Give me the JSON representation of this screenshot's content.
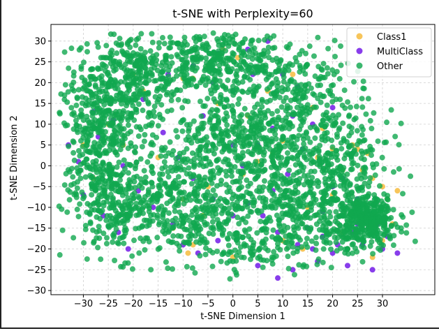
{
  "chart_data": {
    "type": "scatter",
    "title": "t-SNE with Perplexity=60",
    "xlabel": "t-SNE Dimension 1",
    "ylabel": "t-SNE Dimension 2",
    "xlim": [
      -36.5,
      40.5
    ],
    "ylim": [
      -31,
      34
    ],
    "xticks": [
      -30,
      -25,
      -20,
      -15,
      -10,
      -5,
      0,
      5,
      10,
      15,
      20,
      25,
      30
    ],
    "yticks": [
      -30,
      -25,
      -20,
      -15,
      -10,
      -5,
      0,
      5,
      10,
      15,
      20,
      25,
      30
    ],
    "grid": true,
    "legend_position": "top-right",
    "series": [
      {
        "name": "Class1",
        "color": "#f5b731",
        "points": [
          [
            -10,
            21
          ],
          [
            -8,
            21
          ],
          [
            -5,
            24
          ],
          [
            -2,
            28
          ],
          [
            1,
            26
          ],
          [
            -18,
            18
          ],
          [
            -20,
            22
          ],
          [
            -25,
            10
          ],
          [
            -22,
            5
          ],
          [
            -15,
            2
          ],
          [
            -8,
            -19
          ],
          [
            -9,
            -21
          ],
          [
            -10,
            -8
          ],
          [
            -5,
            -5
          ],
          [
            2,
            -2
          ],
          [
            5,
            1
          ],
          [
            8,
            3
          ],
          [
            10,
            6
          ],
          [
            3,
            12
          ],
          [
            -3,
            15
          ],
          [
            7,
            18
          ],
          [
            12,
            22
          ],
          [
            16,
            14
          ],
          [
            18,
            9
          ],
          [
            24,
            5
          ],
          [
            25,
            4
          ],
          [
            27,
            3
          ],
          [
            26,
            -1
          ],
          [
            28,
            -3
          ],
          [
            30,
            -5
          ],
          [
            31,
            -8
          ],
          [
            33,
            -6
          ],
          [
            30,
            -18
          ],
          [
            32,
            -14
          ],
          [
            28,
            -22
          ],
          [
            22,
            -16
          ],
          [
            23,
            -20
          ],
          [
            26,
            -12
          ],
          [
            20,
            -7
          ],
          [
            15,
            -10
          ],
          [
            17,
            2
          ],
          [
            20,
            4
          ],
          [
            22,
            -1
          ],
          [
            -28,
            -3
          ],
          [
            -30,
            5
          ],
          [
            -12,
            -15
          ],
          [
            -6,
            -12
          ],
          [
            0,
            -22
          ],
          [
            10,
            -18
          ],
          [
            14,
            -20
          ]
        ]
      },
      {
        "name": "MultiClass",
        "color": "#6a0de6",
        "points": [
          [
            -13,
            22
          ],
          [
            -8,
            24
          ],
          [
            -3,
            27
          ],
          [
            3,
            28
          ],
          [
            7,
            30
          ],
          [
            10,
            22
          ],
          [
            13,
            19
          ],
          [
            -18,
            16
          ],
          [
            -24,
            11
          ],
          [
            -27,
            7
          ],
          [
            -31,
            1
          ],
          [
            -30,
            -7
          ],
          [
            -26,
            -12
          ],
          [
            -23,
            -16
          ],
          [
            -21,
            -20
          ],
          [
            -12,
            -14
          ],
          [
            -10,
            -19
          ],
          [
            -7,
            -21
          ],
          [
            -3,
            -18
          ],
          [
            0,
            -12
          ],
          [
            3,
            -9
          ],
          [
            6,
            -12
          ],
          [
            9,
            -16
          ],
          [
            13,
            -19
          ],
          [
            15,
            -15
          ],
          [
            18,
            -11
          ],
          [
            20,
            -5
          ],
          [
            22,
            -3
          ],
          [
            25,
            -8
          ],
          [
            27,
            -11
          ],
          [
            29,
            -14
          ],
          [
            31,
            -17
          ],
          [
            24,
            -16
          ],
          [
            26,
            -19
          ],
          [
            30,
            -20
          ],
          [
            20,
            -21
          ],
          [
            17,
            -23
          ],
          [
            12,
            -25
          ],
          [
            9,
            -27
          ],
          [
            5,
            -24
          ],
          [
            -4,
            -8
          ],
          [
            -8,
            -3
          ],
          [
            -11,
            2
          ],
          [
            -14,
            8
          ],
          [
            -6,
            12
          ],
          [
            0,
            5
          ],
          [
            2,
            0
          ],
          [
            5,
            5
          ],
          [
            8,
            9
          ],
          [
            12,
            12
          ],
          [
            16,
            10
          ],
          [
            14,
            4
          ],
          [
            11,
            -2
          ],
          [
            8,
            -6
          ],
          [
            0,
            18
          ],
          [
            -4,
            20
          ],
          [
            4,
            22
          ],
          [
            20,
            14
          ],
          [
            -19,
            -6
          ],
          [
            -16,
            -10
          ],
          [
            -22,
            0
          ],
          [
            -28,
            13
          ],
          [
            -33,
            5
          ],
          [
            23,
            -24
          ],
          [
            28,
            -25
          ],
          [
            33,
            -21
          ],
          [
            18,
            -17
          ],
          [
            16,
            -20
          ],
          [
            21,
            -19
          ],
          [
            25,
            -14
          ]
        ]
      },
      {
        "name": "Other",
        "color": "#10a84f",
        "clusters": [
          {
            "cx": -20,
            "cy": 22,
            "sx": 6,
            "sy": 5,
            "n": 330
          },
          {
            "cx": -3,
            "cy": 25,
            "sx": 7,
            "sy": 4,
            "n": 300
          },
          {
            "cx": 12,
            "cy": 18,
            "sx": 6,
            "sy": 6,
            "n": 240
          },
          {
            "cx": -25,
            "cy": 10,
            "sx": 5,
            "sy": 6,
            "n": 280
          },
          {
            "cx": -22,
            "cy": -10,
            "sx": 5,
            "sy": 6,
            "n": 260
          },
          {
            "cx": -10,
            "cy": -8,
            "sx": 6,
            "sy": 7,
            "n": 300
          },
          {
            "cx": 0,
            "cy": 8,
            "sx": 7,
            "sy": 6,
            "n": 300
          },
          {
            "cx": 8,
            "cy": -2,
            "sx": 6,
            "sy": 7,
            "n": 280
          },
          {
            "cx": 3,
            "cy": -16,
            "sx": 7,
            "sy": 5,
            "n": 220
          },
          {
            "cx": 18,
            "cy": -12,
            "sx": 5,
            "sy": 6,
            "n": 220
          },
          {
            "cx": 27,
            "cy": -13,
            "sx": 3,
            "sy": 3,
            "n": 340
          },
          {
            "cx": 22,
            "cy": 2,
            "sx": 5,
            "sy": 6,
            "n": 200
          },
          {
            "cx": -28,
            "cy": 0,
            "sx": 3,
            "sy": 8,
            "n": 140
          }
        ]
      }
    ]
  }
}
